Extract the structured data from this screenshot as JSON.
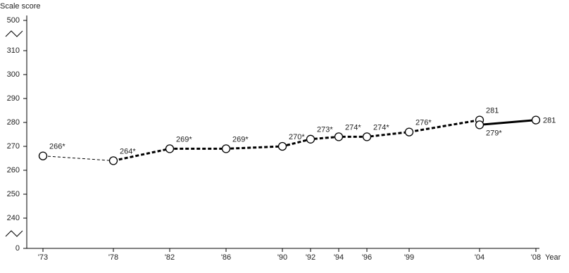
{
  "chart_data": {
    "type": "line",
    "y_axis_label": "Scale score",
    "x_axis_label": "Year",
    "ylim": [
      0,
      500
    ],
    "ybreak": [
      235,
      315
    ],
    "yticks": [
      0,
      240,
      250,
      260,
      270,
      280,
      290,
      300,
      310,
      500
    ],
    "xlim": [
      1971.85,
      2008.25
    ],
    "xticks": [
      {
        "value": 1973,
        "label": "'73"
      },
      {
        "value": 1978,
        "label": "'78"
      },
      {
        "value": 1982,
        "label": "'82"
      },
      {
        "value": 1986,
        "label": "'86"
      },
      {
        "value": 1990,
        "label": "'90"
      },
      {
        "value": 1992,
        "label": "'92"
      },
      {
        "value": 1994,
        "label": "'94"
      },
      {
        "value": 1996,
        "label": "'96"
      },
      {
        "value": 1999,
        "label": "'99"
      },
      {
        "value": 2004,
        "label": "'04"
      },
      {
        "value": 2008,
        "label": "'08"
      }
    ],
    "color": "#000000",
    "series": [
      {
        "x": [
          1973,
          1978,
          1982,
          1986,
          1990,
          1992,
          1994,
          1996,
          1999,
          2004
        ],
        "values": [
          266,
          264,
          269,
          269,
          270,
          273,
          274,
          274,
          276,
          281
        ],
        "value_labels": [
          "266*",
          "264*",
          "269*",
          "269*",
          "270*",
          "273*",
          "274*",
          "274*",
          "276*",
          "281"
        ],
        "dashed": true,
        "line_widths": [
          1,
          3,
          3,
          3,
          3,
          3,
          3,
          3,
          3
        ]
      },
      {
        "x": [
          2004,
          2008
        ],
        "values": [
          279,
          281
        ],
        "value_labels": [
          "279*",
          "281"
        ],
        "dashed": false,
        "line_widths": [
          3
        ]
      }
    ]
  }
}
